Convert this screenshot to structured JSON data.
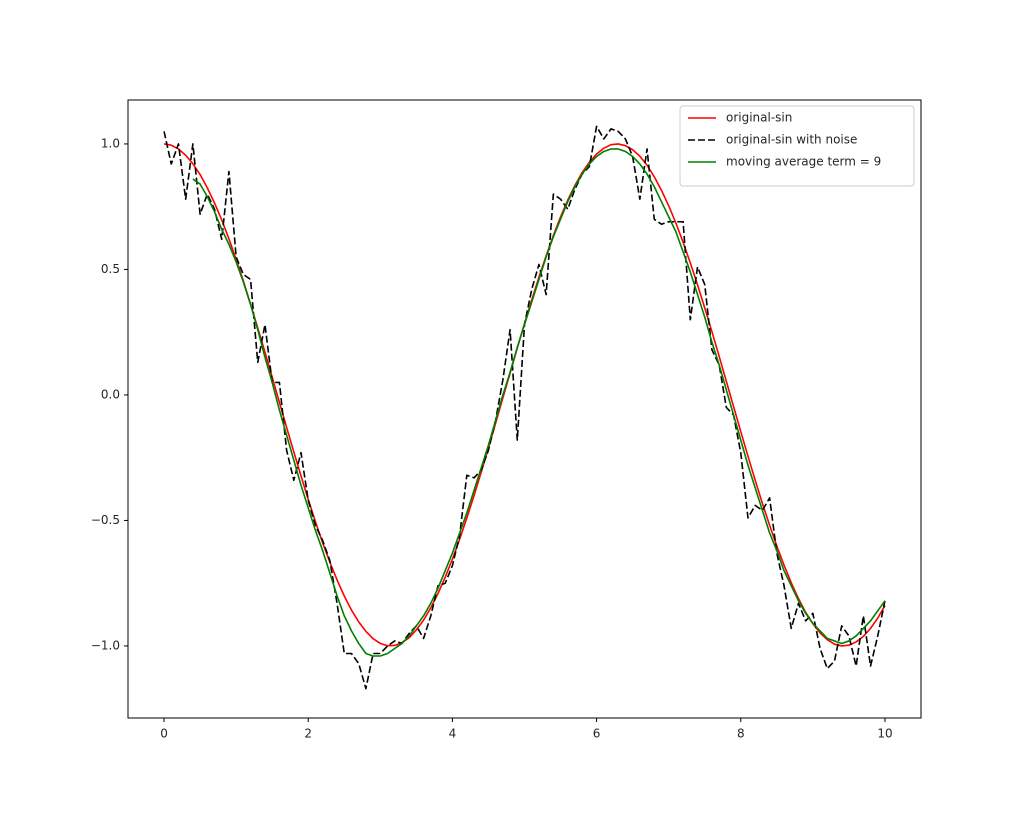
{
  "chart_data": {
    "type": "line",
    "x": [
      0,
      0.1,
      0.2,
      0.3,
      0.4,
      0.5,
      0.6,
      0.7,
      0.8,
      0.9,
      1,
      1.1,
      1.2,
      1.3,
      1.4,
      1.5,
      1.6,
      1.7,
      1.8,
      1.9,
      2,
      2.1,
      2.2,
      2.3,
      2.4,
      2.5,
      2.6,
      2.7,
      2.8,
      2.9,
      3,
      3.1,
      3.2,
      3.3,
      3.4,
      3.5,
      3.6,
      3.7,
      3.8,
      3.9,
      4,
      4.1,
      4.2,
      4.3,
      4.4,
      4.5,
      4.6,
      4.7,
      4.8,
      4.9,
      5,
      5.1,
      5.2,
      5.3,
      5.4,
      5.5,
      5.6,
      5.7,
      5.8,
      5.9,
      6,
      6.1,
      6.2,
      6.3,
      6.4,
      6.5,
      6.6,
      6.7,
      6.8,
      6.9,
      7,
      7.1,
      7.2,
      7.3,
      7.4,
      7.5,
      7.6,
      7.7,
      7.8,
      7.9,
      8,
      8.1,
      8.2,
      8.3,
      8.4,
      8.5,
      8.6,
      8.7,
      8.8,
      8.9,
      9,
      9.1,
      9.2,
      9.3,
      9.4,
      9.5,
      9.6,
      9.7,
      9.8,
      9.9,
      10
    ],
    "series": [
      {
        "name": "original-sin",
        "color": "#ff0000",
        "linestyle": "solid",
        "values": [
          1.0,
          0.995,
          0.98,
          0.955,
          0.921,
          0.878,
          0.825,
          0.765,
          0.697,
          0.622,
          0.54,
          0.454,
          0.362,
          0.267,
          0.17,
          0.071,
          -0.029,
          -0.129,
          -0.227,
          -0.323,
          -0.416,
          -0.505,
          -0.589,
          -0.666,
          -0.737,
          -0.801,
          -0.857,
          -0.904,
          -0.942,
          -0.971,
          -0.99,
          -0.999,
          -0.998,
          -0.987,
          -0.967,
          -0.936,
          -0.897,
          -0.848,
          -0.791,
          -0.726,
          -0.654,
          -0.575,
          -0.49,
          -0.401,
          -0.307,
          -0.211,
          -0.112,
          -0.012,
          0.087,
          0.187,
          0.284,
          0.378,
          0.469,
          0.554,
          0.635,
          0.709,
          0.776,
          0.835,
          0.886,
          0.927,
          0.96,
          0.983,
          0.997,
          1.0,
          0.993,
          0.977,
          0.951,
          0.915,
          0.869,
          0.815,
          0.754,
          0.685,
          0.608,
          0.526,
          0.439,
          0.347,
          0.252,
          0.154,
          0.054,
          -0.046,
          -0.146,
          -0.244,
          -0.34,
          -0.432,
          -0.519,
          -0.602,
          -0.678,
          -0.748,
          -0.811,
          -0.866,
          -0.911,
          -0.948,
          -0.975,
          -0.993,
          -1.0,
          -0.997,
          -0.984,
          -0.962,
          -0.93,
          -0.889,
          -0.839
        ]
      },
      {
        "name": "original-sin with noise",
        "color": "#000000",
        "linestyle": "dashed",
        "values": [
          1.05,
          0.92,
          1.0,
          0.78,
          1.0,
          0.72,
          0.8,
          0.74,
          0.62,
          0.89,
          0.55,
          0.48,
          0.46,
          0.13,
          0.28,
          0.05,
          0.05,
          -0.22,
          -0.34,
          -0.23,
          -0.42,
          -0.52,
          -0.58,
          -0.66,
          -0.83,
          -1.03,
          -1.03,
          -1.07,
          -1.17,
          -1.03,
          -1.03,
          -1.0,
          -0.98,
          -0.99,
          -0.95,
          -0.92,
          -0.97,
          -0.88,
          -0.76,
          -0.75,
          -0.68,
          -0.56,
          -0.32,
          -0.33,
          -0.3,
          -0.22,
          -0.1,
          0.06,
          0.26,
          -0.18,
          0.28,
          0.42,
          0.52,
          0.4,
          0.8,
          0.78,
          0.74,
          0.82,
          0.88,
          0.91,
          1.07,
          1.02,
          1.06,
          1.05,
          1.02,
          0.95,
          0.78,
          0.98,
          0.7,
          0.68,
          0.69,
          0.69,
          0.69,
          0.3,
          0.51,
          0.44,
          0.18,
          0.12,
          -0.05,
          -0.08,
          -0.23,
          -0.49,
          -0.44,
          -0.46,
          -0.41,
          -0.63,
          -0.76,
          -0.93,
          -0.83,
          -0.9,
          -0.87,
          -1.01,
          -1.09,
          -1.06,
          -0.92,
          -0.96,
          -1.08,
          -0.88,
          -1.08,
          -0.96,
          -0.82
        ]
      },
      {
        "name": "moving average term = 9",
        "color": "#008000",
        "linestyle": "solid",
        "values": [
          null,
          null,
          null,
          null,
          0.86,
          0.84,
          0.79,
          0.73,
          0.66,
          0.6,
          0.53,
          0.45,
          0.36,
          0.26,
          0.15,
          0.05,
          -0.06,
          -0.16,
          -0.26,
          -0.36,
          -0.45,
          -0.54,
          -0.62,
          -0.71,
          -0.8,
          -0.88,
          -0.94,
          -0.99,
          -1.03,
          -1.04,
          -1.04,
          -1.03,
          -1.01,
          -0.99,
          -0.96,
          -0.92,
          -0.88,
          -0.83,
          -0.77,
          -0.7,
          -0.63,
          -0.55,
          -0.47,
          -0.38,
          -0.29,
          -0.2,
          -0.1,
          0.0,
          0.09,
          0.19,
          0.28,
          0.37,
          0.46,
          0.55,
          0.63,
          0.7,
          0.77,
          0.83,
          0.88,
          0.92,
          0.95,
          0.97,
          0.98,
          0.98,
          0.97,
          0.95,
          0.92,
          0.88,
          0.83,
          0.77,
          0.71,
          0.65,
          0.57,
          0.49,
          0.4,
          0.31,
          0.21,
          0.12,
          0.02,
          -0.08,
          -0.18,
          -0.28,
          -0.37,
          -0.46,
          -0.55,
          -0.62,
          -0.7,
          -0.76,
          -0.82,
          -0.87,
          -0.91,
          -0.94,
          -0.97,
          -0.98,
          -0.99,
          -0.98,
          -0.96,
          -0.93,
          -0.9,
          -0.86,
          -0.82
        ]
      }
    ],
    "xlim": [
      -0.5,
      10.5
    ],
    "ylim": [
      -1.287,
      1.175
    ],
    "xticks": [
      0,
      2,
      4,
      6,
      8,
      10
    ],
    "yticks": [
      {
        "value": -1.0,
        "label": "−1.0"
      },
      {
        "value": -0.5,
        "label": "−0.5"
      },
      {
        "value": 0.0,
        "label": "0.0"
      },
      {
        "value": 0.5,
        "label": "0.5"
      },
      {
        "value": 1.0,
        "label": "1.0"
      }
    ],
    "grid": false,
    "legend": "upper right"
  }
}
